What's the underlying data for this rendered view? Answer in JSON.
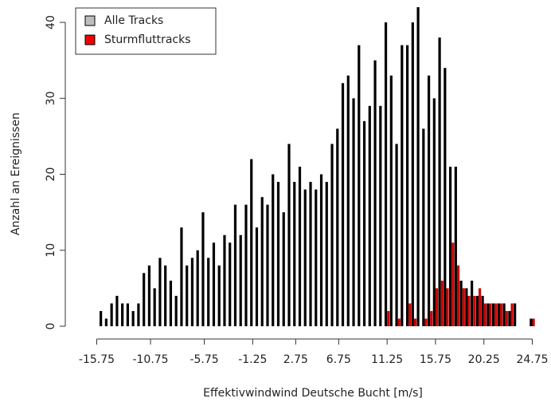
{
  "chart_data": {
    "type": "bar",
    "xlabel": "Effektivwindwind Deutsche Bucht [m/s]",
    "ylabel": "Anzahl an Ereignissen",
    "x": [
      -15.75,
      -15.25,
      -14.75,
      -14.25,
      -13.75,
      -13.25,
      -12.75,
      -12.25,
      -11.75,
      -11.25,
      -10.75,
      -10.25,
      -9.75,
      -9.25,
      -8.75,
      -8.25,
      -7.75,
      -7.25,
      -6.75,
      -6.25,
      -5.75,
      -5.25,
      -4.75,
      -4.25,
      -3.75,
      -3.25,
      -2.75,
      -2.25,
      -1.75,
      -1.25,
      -0.75,
      -0.25,
      0.25,
      0.75,
      1.25,
      1.75,
      2.25,
      2.75,
      3.25,
      3.75,
      4.25,
      4.75,
      5.25,
      5.75,
      6.25,
      6.75,
      7.25,
      7.75,
      8.25,
      8.75,
      9.25,
      9.75,
      10.25,
      10.75,
      11.25,
      11.75,
      12.25,
      12.75,
      13.25,
      13.75,
      14.25,
      14.75,
      15.25,
      15.75,
      16.25,
      16.75,
      17.25,
      17.75,
      18.25,
      18.75,
      19.25,
      19.75,
      20.25,
      20.75,
      21.25,
      21.75,
      22.25,
      22.75,
      23.25,
      23.75,
      24.25,
      24.75
    ],
    "series": [
      {
        "name": "Alle Tracks",
        "color": "#000000",
        "legend_color": "#bebebe",
        "values": [
          0,
          2,
          1,
          3,
          4,
          3,
          3,
          2,
          3,
          7,
          8,
          5,
          9,
          8,
          6,
          4,
          13,
          8,
          9,
          10,
          15,
          9,
          11,
          8,
          12,
          11,
          16,
          12,
          16,
          22,
          13,
          17,
          16,
          20,
          19,
          15,
          24,
          19,
          21,
          18,
          19,
          18,
          20,
          19,
          24,
          26,
          32,
          33,
          30,
          37,
          27,
          29,
          35,
          29,
          40,
          33,
          24,
          37,
          37,
          40,
          42,
          26,
          33,
          30,
          38,
          34,
          21,
          21,
          6,
          5,
          6,
          4,
          4,
          3,
          3,
          3,
          3,
          2,
          3,
          0,
          0,
          1
        ]
      },
      {
        "name": "Sturmfluttracks",
        "color": "#cc0000",
        "legend_color": "#ee0000",
        "values": [
          0,
          0,
          0,
          0,
          0,
          0,
          0,
          0,
          0,
          0,
          0,
          0,
          0,
          0,
          0,
          0,
          0,
          0,
          0,
          0,
          0,
          0,
          0,
          0,
          0,
          0,
          0,
          0,
          0,
          0,
          0,
          0,
          0,
          0,
          0,
          0,
          0,
          0,
          0,
          0,
          0,
          0,
          0,
          0,
          0,
          0,
          0,
          0,
          0,
          0,
          0,
          0,
          0,
          0,
          2,
          0,
          1,
          0,
          3,
          1,
          0,
          1,
          2,
          5,
          6,
          5,
          11,
          8,
          5,
          4,
          4,
          5,
          3,
          3,
          3,
          3,
          2,
          3,
          0,
          0,
          0,
          1
        ]
      }
    ],
    "xlim": [
      -18.6,
      25.75
    ],
    "xticks": [
      -15.75,
      -10.75,
      -5.75,
      -1.25,
      2.75,
      6.75,
      11.25,
      15.75,
      20.25,
      24.75
    ],
    "ylim": [
      0,
      42
    ],
    "yticks": [
      0,
      10,
      20,
      30,
      40
    ],
    "legend": "top-left"
  }
}
